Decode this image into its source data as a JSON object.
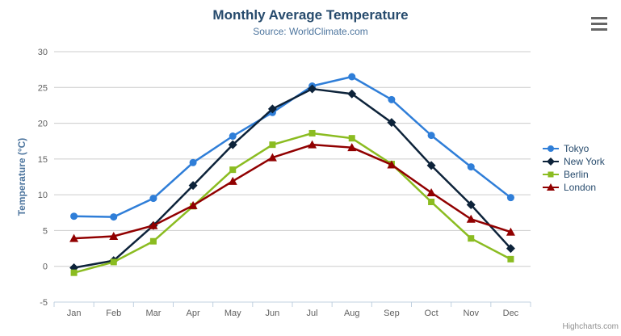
{
  "chart_data": {
    "type": "line",
    "title": "Monthly Average Temperature",
    "subtitle": "Source: WorldClimate.com",
    "categories": [
      "Jan",
      "Feb",
      "Mar",
      "Apr",
      "May",
      "Jun",
      "Jul",
      "Aug",
      "Sep",
      "Oct",
      "Nov",
      "Dec"
    ],
    "xlabel": "",
    "ylabel": "Temperature (°C)",
    "ylim": [
      -5,
      30
    ],
    "tick_interval": 5,
    "grid": true,
    "legend_position": "right",
    "series": [
      {
        "name": "Tokyo",
        "color": "#2f7ed8",
        "marker": "circle",
        "values": [
          7.0,
          6.9,
          9.5,
          14.5,
          18.2,
          21.5,
          25.2,
          26.5,
          23.3,
          18.3,
          13.9,
          9.6
        ]
      },
      {
        "name": "New York",
        "color": "#0d233a",
        "marker": "diamond",
        "values": [
          -0.2,
          0.8,
          5.7,
          11.3,
          17.0,
          22.0,
          24.8,
          24.1,
          20.1,
          14.1,
          8.6,
          2.5
        ]
      },
      {
        "name": "Berlin",
        "color": "#8bbc21",
        "marker": "square",
        "values": [
          -0.9,
          0.6,
          3.5,
          8.4,
          13.5,
          17.0,
          18.6,
          17.9,
          14.3,
          9.0,
          3.9,
          1.0
        ]
      },
      {
        "name": "London",
        "color": "#910000",
        "marker": "triangle",
        "values": [
          3.9,
          4.2,
          5.7,
          8.5,
          11.9,
          15.2,
          17.0,
          16.6,
          14.2,
          10.3,
          6.6,
          4.8
        ]
      }
    ],
    "theme_colors": {
      "title": "#274b6d",
      "subtitle": "#4d759e",
      "axis_title": "#4d759e",
      "axis_label": "#606060",
      "axis_line": "#c0d0e0",
      "gridline": "#cccccc",
      "legend_text": "#274b6d",
      "credits_text": "#909090",
      "menu_icon": "#666666"
    }
  },
  "credits": {
    "label": "Highcharts.com"
  }
}
